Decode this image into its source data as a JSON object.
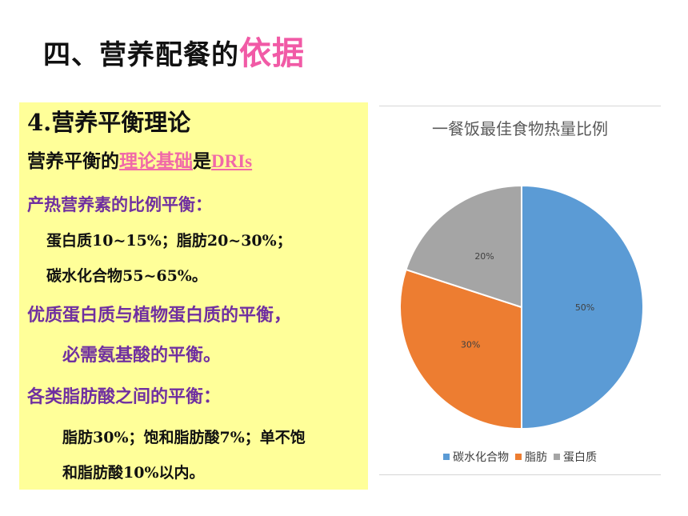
{
  "title": {
    "prefix": "四、营养配餐的",
    "highlight": "依据"
  },
  "content": {
    "heading": "4.营养平衡理论",
    "line1": {
      "a": "营养平衡的",
      "b": "理论基础",
      "c": "是",
      "d": "DRIs"
    },
    "line2": "产热营养素的比例平衡：",
    "line3": "蛋白质10~15%；脂肪20~30%；",
    "line4": "碳水化合物55~65%。",
    "line5": "优质蛋白质与植物蛋白质的平衡，",
    "line6": "必需氨基酸的平衡。",
    "line7": "各类脂肪酸之间的平衡：",
    "line8": "脂肪30%；饱和脂肪酸7%；单不饱",
    "line9": "和脂肪酸10%以内。"
  },
  "chart_data": {
    "type": "pie",
    "title": "一餐饭最佳食物热量比例",
    "categories": [
      "碳水化合物",
      "脂肪",
      "蛋白质"
    ],
    "values": [
      50,
      30,
      20
    ],
    "labels": [
      "50%",
      "30%",
      "20%"
    ],
    "colors": [
      "#5b9bd5",
      "#ed7d31",
      "#a5a5a5"
    ],
    "legend_position": "bottom"
  }
}
